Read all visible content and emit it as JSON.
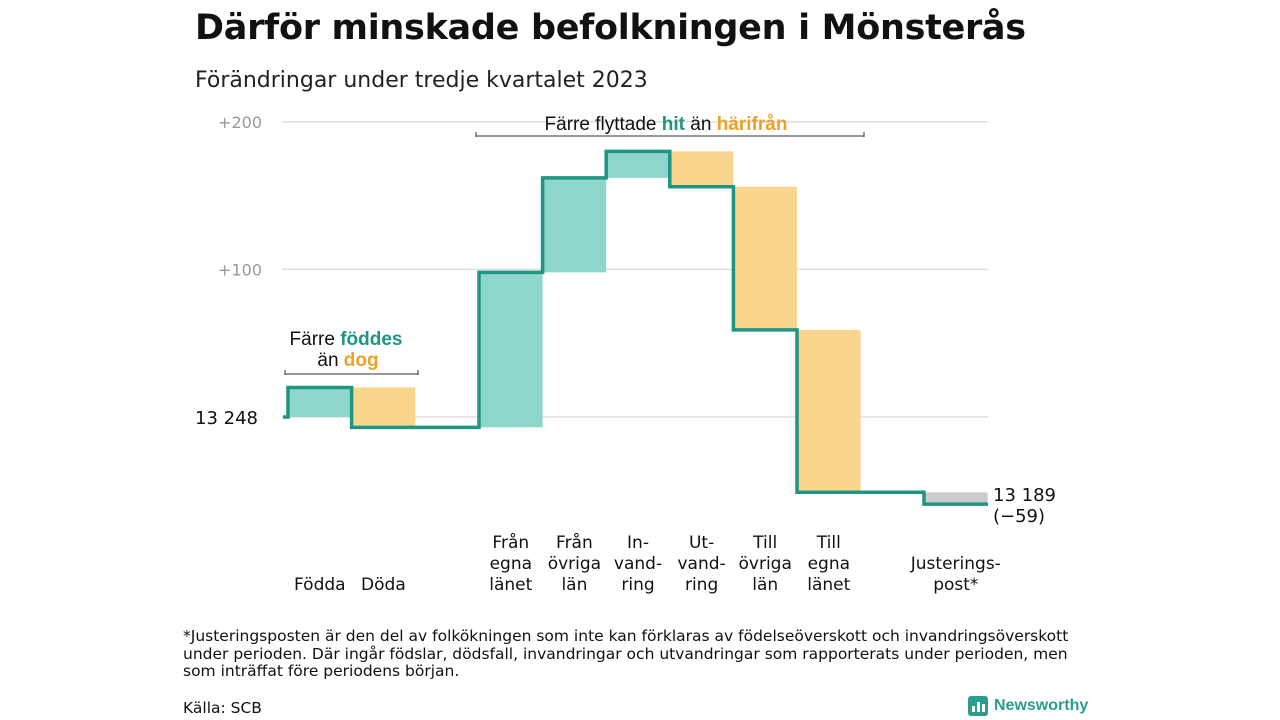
{
  "title": "Därför minskade befolkningen i Mönsterås",
  "subtitle": "Förändringar under tredje kvartalet 2023",
  "chart_data": {
    "type": "waterfall",
    "baseline_value": 13248,
    "yticks": [
      {
        "value": 200,
        "label": "+200"
      },
      {
        "value": 100,
        "label": "+100"
      }
    ],
    "start_label": "13  248",
    "end_label": [
      "13 189",
      "(−59)"
    ],
    "steps": [
      {
        "category": "Födda",
        "lines": [
          "Födda"
        ],
        "change": 20,
        "sign": "positive"
      },
      {
        "category": "Döda",
        "lines": [
          "Döda"
        ],
        "change": -27,
        "sign": "negative"
      },
      {
        "category": "Från egna länet",
        "lines": [
          "Från",
          "egna",
          "länet"
        ],
        "change": 105,
        "sign": "positive"
      },
      {
        "category": "Från övriga län",
        "lines": [
          "Från",
          "övriga",
          "län"
        ],
        "change": 64,
        "sign": "positive"
      },
      {
        "category": "Invandring",
        "lines": [
          "In-",
          "vand-",
          "ring"
        ],
        "change": 18,
        "sign": "positive"
      },
      {
        "category": "Utvandring",
        "lines": [
          "Ut-",
          "vand-",
          "ring"
        ],
        "change": -24,
        "sign": "negative"
      },
      {
        "category": "Till övriga län",
        "lines": [
          "Till",
          "övriga",
          "län"
        ],
        "change": -97,
        "sign": "negative"
      },
      {
        "category": "Till egna länet",
        "lines": [
          "Till",
          "egna",
          "länet"
        ],
        "change": -110,
        "sign": "negative"
      },
      {
        "category": "Justeringspost*",
        "lines": [
          "Justerings-",
          "post*"
        ],
        "change": -8,
        "sign": "adjustment"
      }
    ],
    "colors": {
      "positive": "#8ed6cc",
      "negative": "#fad58e",
      "adjustment": "#cccccc",
      "line": "#1f9584",
      "grid": "#dddddd",
      "hit": "#1f9584",
      "dog": "#f0a025"
    },
    "annotations": {
      "births": {
        "line1_pre": "Färre ",
        "line1_hl": "föddes",
        "line2_pre": "än ",
        "line2_hl": "dog"
      },
      "moves": {
        "pre": "Färre flyttade ",
        "hl1": "hit",
        "mid": " än ",
        "hl2": "härifrån"
      }
    }
  },
  "footnote": "*Justeringsposten är den del av folkökningen som inte kan förklaras av födelseöverskott och invandringsöverskott under perioden. Där ingår födslar, dödsfall, invandringar och utvandringar som rapporterats under perioden, men som inträffat före periodens början.",
  "source": "Källa: SCB",
  "brand": "Newsworthy",
  "brand_icon": "bar-chart-icon"
}
